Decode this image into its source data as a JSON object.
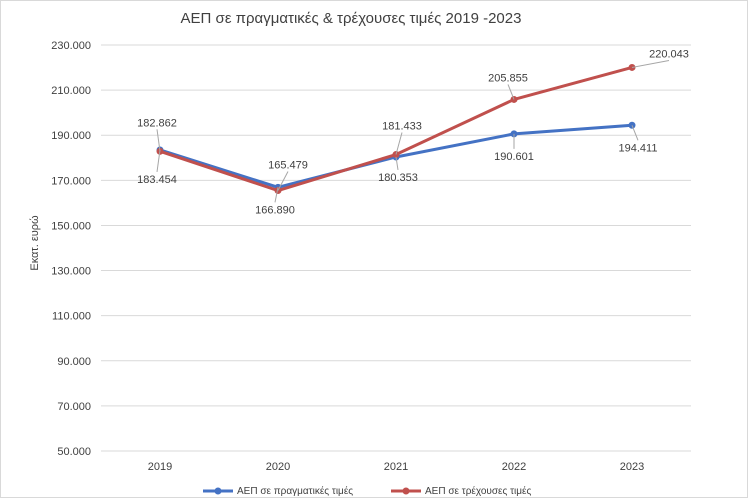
{
  "chart_data": {
    "type": "line",
    "title": "ΑΕΠ σε πραγματικές & τρέχουσες τιμές 2019 -2023",
    "xlabel": "",
    "ylabel": "Εκατ. ευρώ",
    "categories": [
      "2019",
      "2020",
      "2021",
      "2022",
      "2023"
    ],
    "ylim": [
      50000,
      230000
    ],
    "yticks": [
      50000,
      70000,
      90000,
      110000,
      130000,
      150000,
      170000,
      190000,
      210000,
      230000
    ],
    "ytick_labels": [
      "50.000",
      "70.000",
      "90.000",
      "110.000",
      "130.000",
      "150.000",
      "170.000",
      "190.000",
      "210.000",
      "230.000"
    ],
    "grid": true,
    "legend_position": "bottom",
    "series": [
      {
        "name": "ΑΕΠ σε πραγματικές τιμές",
        "color": "#4472c4",
        "values": [
          183454,
          166890,
          180353,
          190601,
          194411
        ],
        "labels": [
          "183.454",
          "166.890",
          "180.353",
          "190.601",
          "194.411"
        ]
      },
      {
        "name": "ΑΕΠ σε τρέχουσες τιμές",
        "color": "#c0504d",
        "values": [
          182862,
          165479,
          181433,
          205855,
          220043
        ],
        "labels": [
          "182.862",
          "165.479",
          "181.433",
          "205.855",
          "220.043"
        ]
      }
    ]
  }
}
